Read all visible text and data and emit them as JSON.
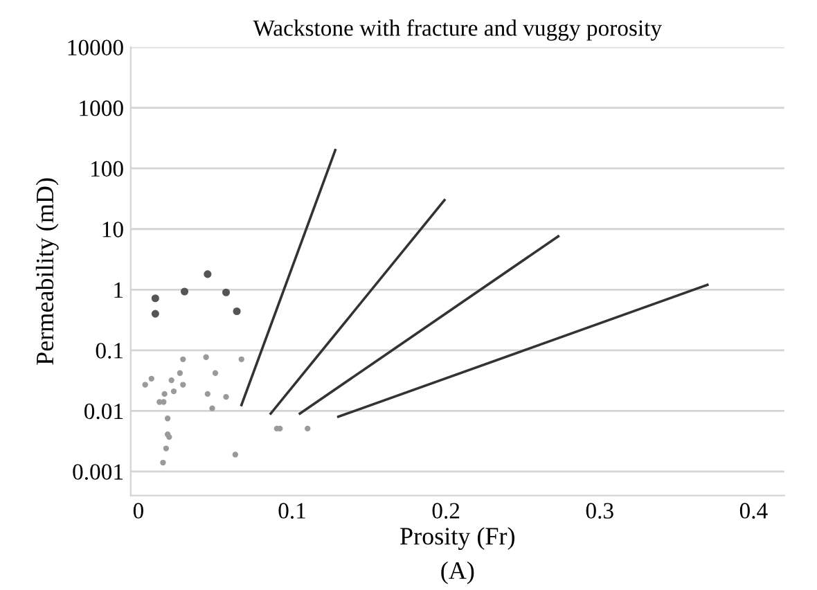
{
  "chart_data": {
    "type": "scatter",
    "title": "Wackstone with fracture and vuggy porosity",
    "xlabel": "Prosity (Fr)",
    "ylabel": "Permeability (mD)",
    "annotations": [
      "(A)"
    ],
    "log": "y",
    "grid": "y",
    "xlim": [
      -0.005,
      0.42
    ],
    "xticks": [
      0,
      0.1,
      0.2,
      0.3,
      0.4
    ],
    "ylim": [
      0.0004,
      10000
    ],
    "yticks": [
      0.001,
      0.01,
      0.1,
      1,
      10,
      100,
      1000,
      10000
    ],
    "series": [
      {
        "marker": "circle",
        "color": "#9a9a9a",
        "x": [
          0.0044,
          0.0085,
          0.0137,
          0.0164,
          0.017,
          0.0215,
          0.023,
          0.027,
          0.029,
          0.029,
          0.019,
          0.019,
          0.02,
          0.018,
          0.016,
          0.044,
          0.045,
          0.05,
          0.048,
          0.057,
          0.067,
          0.063,
          0.09,
          0.092,
          0.11
        ],
        "values": [
          0.027,
          0.034,
          0.014,
          0.014,
          0.019,
          0.032,
          0.021,
          0.042,
          0.071,
          0.027,
          0.0075,
          0.0041,
          0.0037,
          0.0024,
          0.0014,
          0.077,
          0.019,
          0.042,
          0.011,
          0.017,
          0.071,
          0.0019,
          0.0051,
          0.0051,
          0.0051
        ]
      },
      {
        "marker": "circle",
        "color": "#555555",
        "x": [
          0.011,
          0.011,
          0.03,
          0.045,
          0.057,
          0.064
        ],
        "values": [
          0.72,
          0.4,
          0.93,
          1.8,
          0.9,
          0.44
        ]
      },
      {
        "type": "line",
        "color": "#333333",
        "x": [
          0.067,
          0.128
        ],
        "values": [
          0.0125,
          200
        ]
      },
      {
        "type": "line",
        "color": "#333333",
        "x": [
          0.086,
          0.199
        ],
        "values": [
          0.009,
          30
        ]
      },
      {
        "type": "line",
        "color": "#333333",
        "x": [
          0.105,
          0.273
        ],
        "values": [
          0.009,
          7.6
        ]
      },
      {
        "type": "line",
        "color": "#333333",
        "x": [
          0.13,
          0.37
        ],
        "values": [
          0.008,
          1.2
        ]
      }
    ]
  }
}
